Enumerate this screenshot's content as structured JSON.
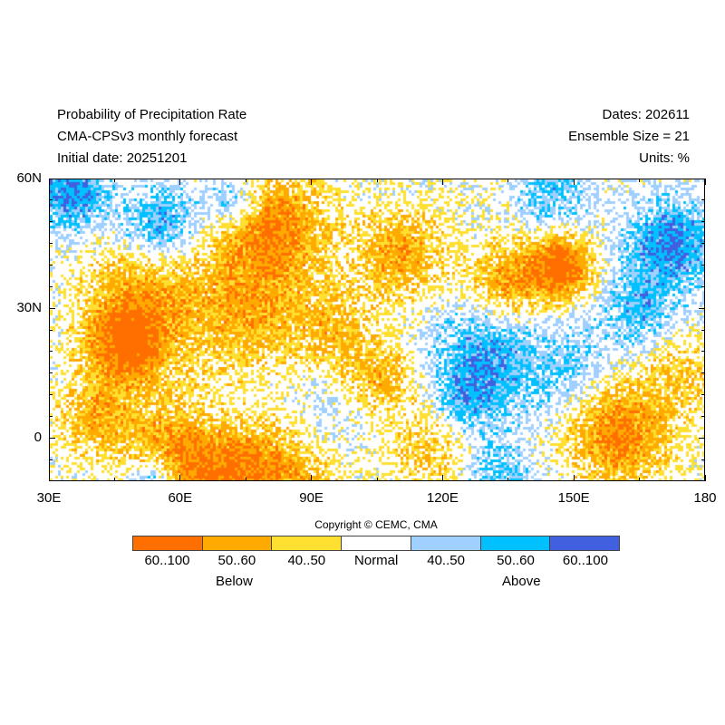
{
  "header": {
    "title": "Probability of Precipitation Rate",
    "model": "CMA-CPSv3 monthly forecast",
    "initial_date": "Initial date: 20251201",
    "dates": "Dates: 202611",
    "ensemble": "Ensemble Size = 21",
    "units": "Units: %"
  },
  "map": {
    "lon_range": [
      30,
      180
    ],
    "lat_range": [
      -10,
      60
    ],
    "x_labels": [
      "30E",
      "60E",
      "90E",
      "120E",
      "150E",
      "180"
    ],
    "y_labels": [
      "60N",
      "30N",
      "0"
    ]
  },
  "legend": {
    "copyright": "Copyright © CEMC, CMA",
    "bins": [
      {
        "label": "60..100",
        "color": "#ff6f00"
      },
      {
        "label": "50..60",
        "color": "#ffaa00"
      },
      {
        "label": "40..50",
        "color": "#ffdf30"
      },
      {
        "label": "Normal",
        "color": "#ffffff"
      },
      {
        "label": "40..50",
        "color": "#a0d0ff"
      },
      {
        "label": "50..60",
        "color": "#00c0ff"
      },
      {
        "label": "60..100",
        "color": "#4060e0"
      }
    ],
    "below_label": "Below",
    "above_label": "Above"
  }
}
